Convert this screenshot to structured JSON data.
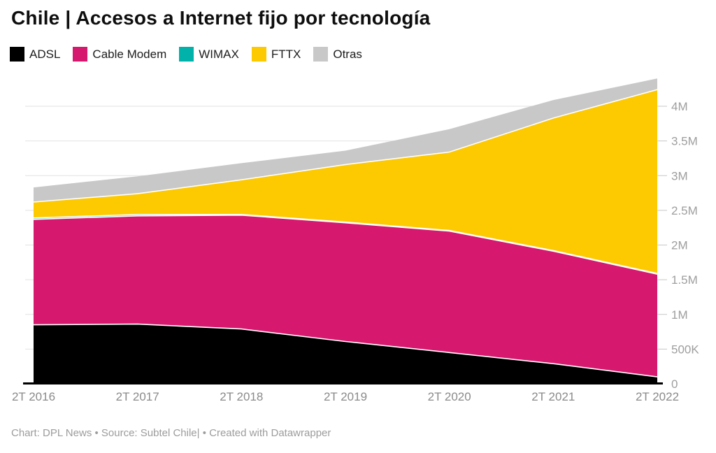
{
  "header": {
    "title": "Chile | Accesos a Internet fijo por tecnología"
  },
  "footer": {
    "text": "Chart: DPL News • Source: Subtel Chile| • Created with Datawrapper"
  },
  "colors": {
    "background": "#ffffff",
    "gridline": "#e2e2e2",
    "tick_dash": "#c7c7c7",
    "axis_line": "#000000",
    "y_tick_label": "#9e9e9e",
    "x_tick_label": "#8b8b8b",
    "layer_separator": "#ffffff"
  },
  "chart_data": {
    "type": "area",
    "stacked": true,
    "title": "Chile | Accesos a Internet fijo por tecnología",
    "unit": "accesses, values in millions",
    "xlabel": "",
    "ylabel": "",
    "categories": [
      "2T 2016",
      "2T 2017",
      "2T 2018",
      "2T 2019",
      "2T 2020",
      "2T 2021",
      "2T 2022"
    ],
    "series": [
      {
        "name": "ADSL",
        "color": "#000000",
        "values": [
          0.85,
          0.86,
          0.79,
          0.61,
          0.45,
          0.29,
          0.1
        ]
      },
      {
        "name": "Cable Modem",
        "color": "#d6186e",
        "values": [
          1.52,
          1.56,
          1.64,
          1.71,
          1.75,
          1.62,
          1.48
        ]
      },
      {
        "name": "WIMAX",
        "color": "#00b2aa",
        "values": [
          0.02,
          0.02,
          0.01,
          0.01,
          0.01,
          0.01,
          0.01
        ]
      },
      {
        "name": "FTTX",
        "color": "#fdc900",
        "values": [
          0.23,
          0.3,
          0.5,
          0.83,
          1.13,
          1.91,
          2.65
        ]
      },
      {
        "name": "Otras",
        "color": "#c8c8c8",
        "values": [
          0.21,
          0.25,
          0.24,
          0.2,
          0.33,
          0.26,
          0.16
        ]
      }
    ],
    "totals": [
      2.83,
      2.99,
      3.18,
      3.36,
      3.67,
      4.09,
      4.4
    ],
    "y_ticks": {
      "values": [
        0,
        0.5,
        1,
        1.5,
        2,
        2.5,
        3,
        3.5,
        4
      ],
      "labels": [
        "0",
        "500K",
        "1M",
        "1.5M",
        "2M",
        "2.5M",
        "3M",
        "3.5M",
        "4M"
      ]
    },
    "ylim": [
      0,
      4.52
    ],
    "grid": true,
    "legend_position": "top"
  }
}
